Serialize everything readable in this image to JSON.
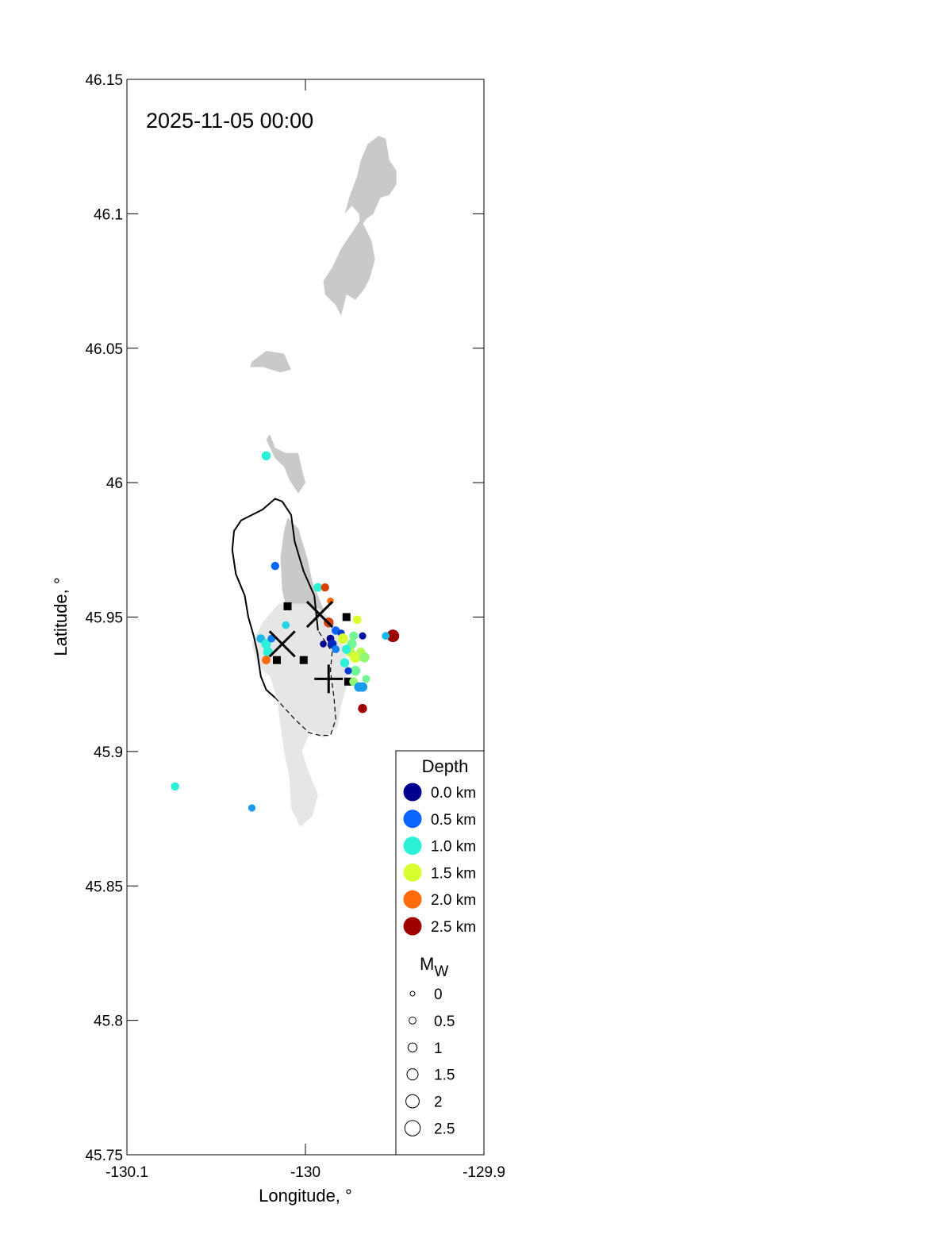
{
  "chart_data": {
    "type": "scatter",
    "title": "",
    "timestamp": "2025-11-05 00:00",
    "xlabel": "Longitude, °",
    "ylabel": "Latitude, °",
    "xlim": [
      -130.1,
      -129.9
    ],
    "ylim": [
      45.75,
      46.15
    ],
    "xticks": [
      -130.1,
      -130,
      -129.9
    ],
    "xtick_labels": [
      "-130.1",
      "-130",
      "-129.9"
    ],
    "yticks": [
      45.75,
      45.8,
      45.85,
      45.9,
      45.95,
      46,
      46.05,
      46.1,
      46.15
    ],
    "ytick_labels": [
      "45.75",
      "45.8",
      "45.85",
      "45.9",
      "45.95",
      "46",
      "46.05",
      "46.1",
      "46.15"
    ],
    "grid": false,
    "colors": {
      "lava_flow": "#c9c9c9",
      "lava_flow_light": "#e6e6e6",
      "depth_0": "#00008f",
      "depth_05": "#0a64ff",
      "depth_1": "#2cf0d8",
      "depth_15": "#d8ff30",
      "depth_2": "#ff6a0a",
      "depth_25": "#9e0000",
      "depth_extra_blue": "#14b8f0",
      "depth_extra_green": "#80ff80",
      "depth_extra_yellow": "#ffd800",
      "depth_extra_red": "#ff1a0a"
    },
    "lava_flows": [
      {
        "shade": "dark",
        "points": [
          [
            -129.959,
            46.129
          ],
          [
            -129.955,
            46.128
          ],
          [
            -129.953,
            46.12
          ],
          [
            -129.949,
            46.116
          ],
          [
            -129.949,
            46.111
          ],
          [
            -129.953,
            46.107
          ],
          [
            -129.958,
            46.106
          ],
          [
            -129.962,
            46.1
          ],
          [
            -129.966,
            46.098
          ],
          [
            -129.969,
            46.095
          ],
          [
            -129.97,
            46.1
          ],
          [
            -129.974,
            46.103
          ],
          [
            -129.978,
            46.1
          ],
          [
            -129.975,
            46.107
          ],
          [
            -129.971,
            46.114
          ],
          [
            -129.969,
            46.12
          ],
          [
            -129.965,
            46.126
          ]
        ]
      },
      {
        "shade": "dark",
        "points": [
          [
            -129.969,
            46.098
          ],
          [
            -129.963,
            46.09
          ],
          [
            -129.961,
            46.083
          ],
          [
            -129.964,
            46.076
          ],
          [
            -129.967,
            46.072
          ],
          [
            -129.972,
            46.068
          ],
          [
            -129.977,
            46.07
          ],
          [
            -129.98,
            46.062
          ],
          [
            -129.983,
            46.066
          ],
          [
            -129.989,
            46.07
          ],
          [
            -129.99,
            46.075
          ],
          [
            -129.985,
            46.08
          ],
          [
            -129.98,
            46.087
          ],
          [
            -129.974,
            46.093
          ]
        ]
      },
      {
        "shade": "dark",
        "points": [
          [
            -130.03,
            46.045
          ],
          [
            -130.022,
            46.049
          ],
          [
            -130.012,
            46.048
          ],
          [
            -130.008,
            46.042
          ],
          [
            -130.014,
            46.041
          ],
          [
            -130.024,
            46.043
          ],
          [
            -130.031,
            46.043
          ]
        ]
      },
      {
        "shade": "dark",
        "points": [
          [
            -130.022,
            46.016
          ],
          [
            -130.02,
            46.018
          ],
          [
            -130.017,
            46.013
          ],
          [
            -130.011,
            46.011
          ],
          [
            -130.004,
            46.011
          ],
          [
            -130.002,
            46.005
          ],
          [
            -130.0,
            46.0
          ],
          [
            -130.004,
            45.996
          ],
          [
            -130.009,
            46.001
          ],
          [
            -130.012,
            46.006
          ],
          [
            -130.017,
            46.009
          ]
        ]
      },
      {
        "shade": "dark",
        "points": [
          [
            -130.01,
            45.987
          ],
          [
            -130.004,
            45.983
          ],
          [
            -129.999,
            45.972
          ],
          [
            -129.996,
            45.963
          ],
          [
            -129.99,
            45.953
          ],
          [
            -129.988,
            45.945
          ],
          [
            -129.995,
            45.94
          ],
          [
            -130.003,
            45.944
          ],
          [
            -130.01,
            45.951
          ],
          [
            -130.013,
            45.96
          ],
          [
            -130.014,
            45.972
          ],
          [
            -130.012,
            45.982
          ]
        ]
      },
      {
        "shade": "light",
        "points": [
          [
            -130.015,
            45.955
          ],
          [
            -130.0,
            45.955
          ],
          [
            -129.992,
            45.953
          ],
          [
            -129.987,
            45.95
          ],
          [
            -129.982,
            45.946
          ],
          [
            -129.979,
            45.94
          ],
          [
            -129.976,
            45.932
          ],
          [
            -129.977,
            45.924
          ],
          [
            -129.98,
            45.917
          ],
          [
            -129.982,
            45.909
          ],
          [
            -129.99,
            45.905
          ],
          [
            -129.997,
            45.908
          ],
          [
            -130.002,
            45.9
          ],
          [
            -129.998,
            45.892
          ],
          [
            -129.993,
            45.884
          ],
          [
            -129.996,
            45.876
          ],
          [
            -130.003,
            45.872
          ],
          [
            -130.008,
            45.879
          ],
          [
            -130.009,
            45.89
          ],
          [
            -130.012,
            45.9
          ],
          [
            -130.014,
            45.91
          ],
          [
            -130.016,
            45.92
          ],
          [
            -130.02,
            45.928
          ],
          [
            -130.027,
            45.932
          ],
          [
            -130.03,
            45.94
          ],
          [
            -130.024,
            45.948
          ]
        ]
      }
    ],
    "outline_solid": [
      [
        -129.993,
        45.945
      ],
      [
        -129.995,
        45.958
      ],
      [
        -130.001,
        45.967
      ],
      [
        -130.006,
        45.978
      ],
      [
        -130.008,
        45.988
      ],
      [
        -130.013,
        45.993
      ],
      [
        -130.017,
        45.994
      ],
      [
        -130.024,
        45.99
      ],
      [
        -130.036,
        45.986
      ],
      [
        -130.04,
        45.982
      ],
      [
        -130.041,
        45.975
      ],
      [
        -130.039,
        45.966
      ],
      [
        -130.034,
        45.958
      ],
      [
        -130.032,
        45.95
      ],
      [
        -130.029,
        45.943
      ],
      [
        -130.027,
        45.937
      ],
      [
        -130.025,
        45.928
      ],
      [
        -130.022,
        45.923
      ],
      [
        -130.017,
        45.92
      ]
    ],
    "outline_dashed": [
      [
        -130.017,
        45.92
      ],
      [
        -130.006,
        45.912
      ],
      [
        -129.998,
        45.907
      ],
      [
        -129.992,
        45.906
      ],
      [
        -129.986,
        45.906
      ],
      [
        -129.983,
        45.912
      ],
      [
        -129.984,
        45.92
      ],
      [
        -129.986,
        45.93
      ],
      [
        -129.985,
        45.937
      ],
      [
        -129.992,
        45.944
      ],
      [
        -129.993,
        45.945
      ]
    ],
    "station_squares": [
      {
        "x": -130.01,
        "y": 45.954
      },
      {
        "x": -129.977,
        "y": 45.95
      },
      {
        "x": -130.016,
        "y": 45.934
      },
      {
        "x": -130.001,
        "y": 45.934
      },
      {
        "x": -129.976,
        "y": 45.926
      }
    ],
    "x_markers": [
      {
        "x": -129.992,
        "y": 45.951
      },
      {
        "x": -130.013,
        "y": 45.94
      }
    ],
    "plus_markers": [
      {
        "x": -129.987,
        "y": 45.927
      }
    ],
    "points": [
      {
        "x": -130.022,
        "y": 46.01,
        "depth": 1.0,
        "mw": 1.0
      },
      {
        "x": -130.017,
        "y": 45.969,
        "depth": 0.5,
        "mw": 0.8
      },
      {
        "x": -129.993,
        "y": 45.961,
        "depth": 1.0,
        "mw": 0.9
      },
      {
        "x": -129.989,
        "y": 45.961,
        "depth": 2.2,
        "mw": 0.8
      },
      {
        "x": -129.986,
        "y": 45.956,
        "depth": 2.0,
        "mw": 0.5
      },
      {
        "x": -129.987,
        "y": 45.948,
        "depth": 2.2,
        "mw": 1.2
      },
      {
        "x": -129.983,
        "y": 45.945,
        "depth": 0.5,
        "mw": 0.8
      },
      {
        "x": -129.98,
        "y": 45.944,
        "depth": 0.3,
        "mw": 0.6
      },
      {
        "x": -129.986,
        "y": 45.942,
        "depth": 0.0,
        "mw": 0.7
      },
      {
        "x": -129.979,
        "y": 45.942,
        "depth": 1.5,
        "mw": 1.3
      },
      {
        "x": -129.974,
        "y": 45.94,
        "depth": 1.2,
        "mw": 1.1
      },
      {
        "x": -129.975,
        "y": 45.937,
        "depth": 1.4,
        "mw": 1.2
      },
      {
        "x": -129.972,
        "y": 45.935,
        "depth": 1.5,
        "mw": 1.4
      },
      {
        "x": -129.969,
        "y": 45.937,
        "depth": 1.4,
        "mw": 1.0
      },
      {
        "x": -129.967,
        "y": 45.935,
        "depth": 1.3,
        "mw": 1.3
      },
      {
        "x": -129.971,
        "y": 45.949,
        "depth": 1.5,
        "mw": 0.9
      },
      {
        "x": -129.968,
        "y": 45.943,
        "depth": 0.1,
        "mw": 0.6
      },
      {
        "x": -129.973,
        "y": 45.943,
        "depth": 1.2,
        "mw": 0.9
      },
      {
        "x": -129.977,
        "y": 45.938,
        "depth": 1.0,
        "mw": 1.0
      },
      {
        "x": -129.978,
        "y": 45.933,
        "depth": 1.0,
        "mw": 1.0
      },
      {
        "x": -129.972,
        "y": 45.93,
        "depth": 1.2,
        "mw": 1.2
      },
      {
        "x": -129.976,
        "y": 45.93,
        "depth": 0.3,
        "mw": 0.6
      },
      {
        "x": -129.966,
        "y": 45.927,
        "depth": 1.2,
        "mw": 0.7
      },
      {
        "x": -129.973,
        "y": 45.926,
        "depth": 1.3,
        "mw": 0.9
      },
      {
        "x": -129.97,
        "y": 45.924,
        "depth": 0.7,
        "mw": 1.1
      },
      {
        "x": -129.968,
        "y": 45.924,
        "depth": 0.7,
        "mw": 1.1
      },
      {
        "x": -129.985,
        "y": 45.94,
        "depth": 0.2,
        "mw": 1.0
      },
      {
        "x": -129.983,
        "y": 45.938,
        "depth": 0.6,
        "mw": 0.7
      },
      {
        "x": -129.99,
        "y": 45.94,
        "depth": 0.0,
        "mw": 0.5
      },
      {
        "x": -129.968,
        "y": 45.916,
        "depth": 2.5,
        "mw": 1.0
      },
      {
        "x": -129.951,
        "y": 45.943,
        "depth": 2.5,
        "mw": 1.8
      },
      {
        "x": -129.955,
        "y": 45.943,
        "depth": 0.8,
        "mw": 0.7
      },
      {
        "x": -130.025,
        "y": 45.942,
        "depth": 0.8,
        "mw": 0.9
      },
      {
        "x": -130.022,
        "y": 45.94,
        "depth": 1.0,
        "mw": 1.2
      },
      {
        "x": -130.021,
        "y": 45.937,
        "depth": 1.0,
        "mw": 1.2
      },
      {
        "x": -130.019,
        "y": 45.942,
        "depth": 0.6,
        "mw": 0.7
      },
      {
        "x": -130.022,
        "y": 45.934,
        "depth": 2.0,
        "mw": 0.9
      },
      {
        "x": -130.011,
        "y": 45.947,
        "depth": 0.9,
        "mw": 0.7
      },
      {
        "x": -130.073,
        "y": 45.887,
        "depth": 1.0,
        "mw": 0.8
      },
      {
        "x": -130.03,
        "y": 45.879,
        "depth": 0.7,
        "mw": 0.6
      }
    ],
    "depth_legend": {
      "title": "Depth",
      "entries": [
        {
          "label": "0.0 km",
          "color": "#00008f"
        },
        {
          "label": "0.5 km",
          "color": "#0a64ff"
        },
        {
          "label": "1.0 km",
          "color": "#2cf0d8"
        },
        {
          "label": "1.5 km",
          "color": "#d8ff30"
        },
        {
          "label": "2.0 km",
          "color": "#ff6a0a"
        },
        {
          "label": "2.5 km",
          "color": "#9e0000"
        }
      ]
    },
    "mw_legend": {
      "title": "M",
      "title_subscript": "W",
      "entries": [
        {
          "label": "0",
          "mw": 0
        },
        {
          "label": "0.5",
          "mw": 0.5
        },
        {
          "label": "1",
          "mw": 1
        },
        {
          "label": "1.5",
          "mw": 1.5
        },
        {
          "label": "2",
          "mw": 2
        },
        {
          "label": "2.5",
          "mw": 2.5
        }
      ]
    }
  }
}
